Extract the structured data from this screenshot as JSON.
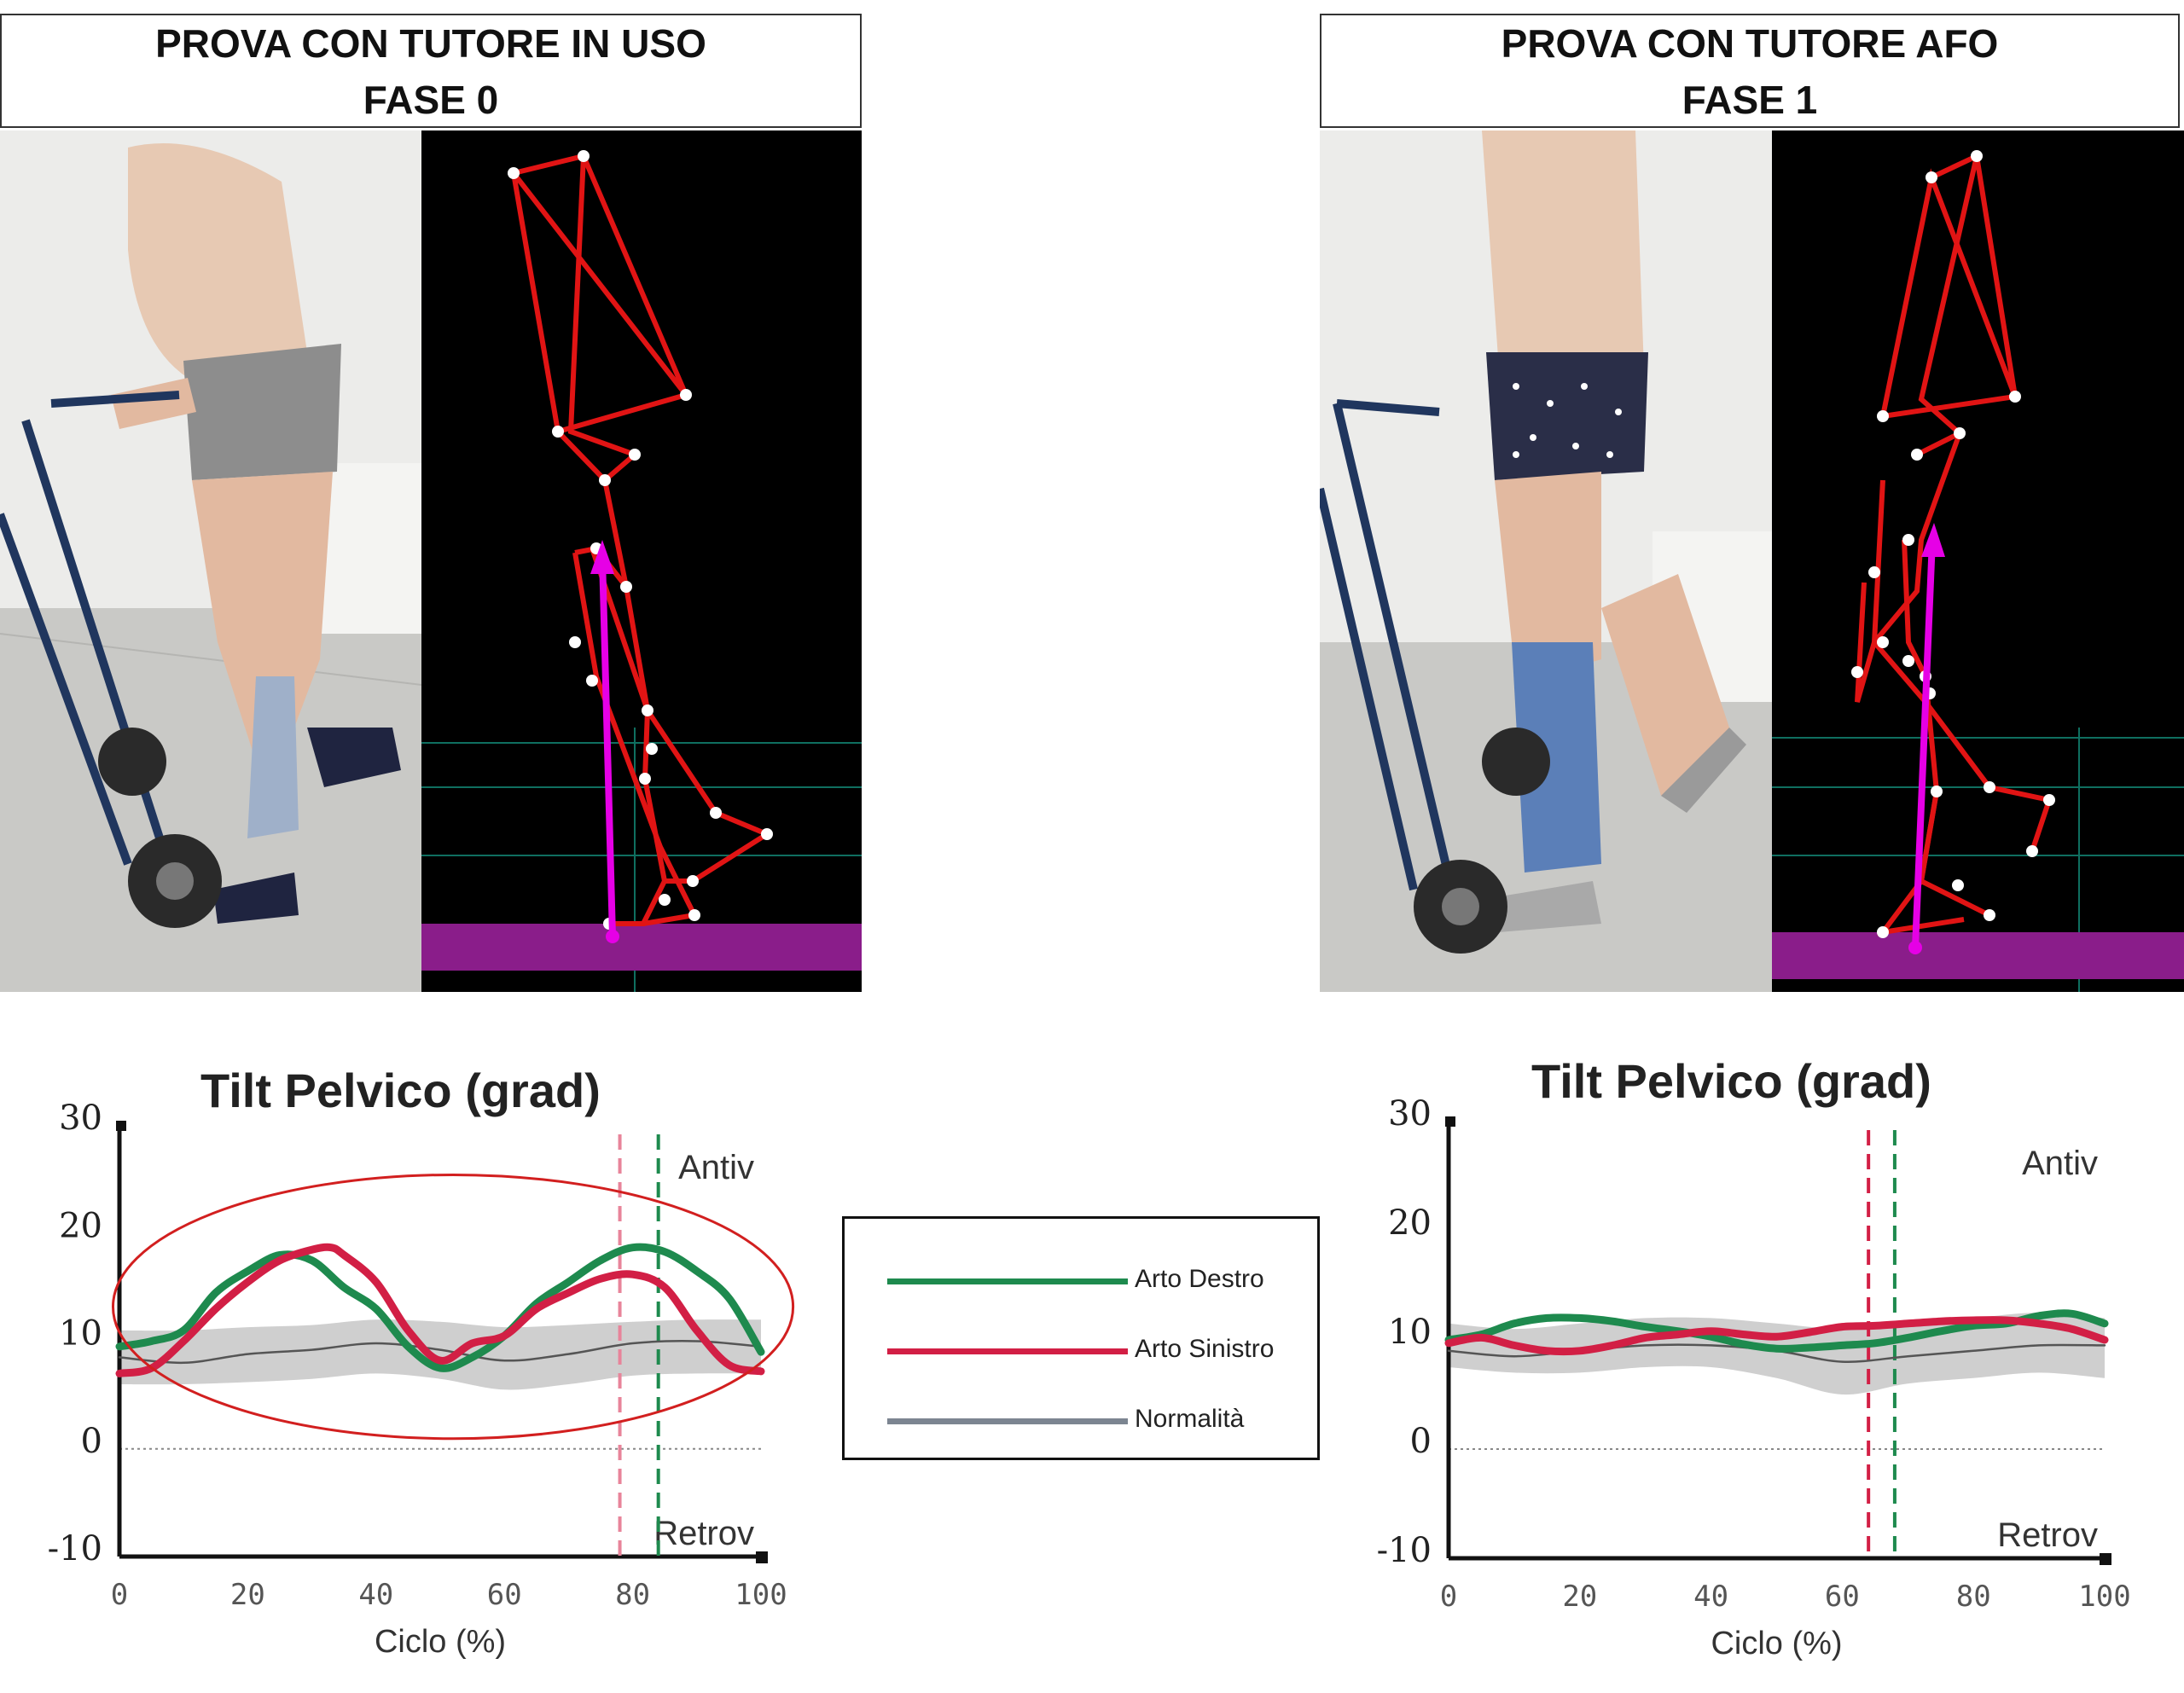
{
  "panels": [
    {
      "header": {
        "line1": "PROVA CON TUTORE IN USO",
        "line2": "FASE 0"
      }
    },
    {
      "header": {
        "line1": "PROVA CON TUTORE AFO",
        "line2": "FASE 1"
      }
    }
  ],
  "legend": [
    {
      "label": "Arto Destro",
      "color": "#1e8a4e"
    },
    {
      "label": "Arto Sinistro",
      "color": "#d21f45"
    },
    {
      "label": "Normalità",
      "color": "#7c8591"
    }
  ],
  "chart_data": [
    {
      "type": "line",
      "title": "Tilt Pelvico (grad)",
      "xlabel": "Ciclo (%)",
      "xlim": [
        0,
        100
      ],
      "ylim": [
        -10,
        30
      ],
      "xticks": [
        "0",
        "20",
        "40",
        "60",
        "80",
        "100"
      ],
      "yticks": [
        "30",
        "20",
        "10",
        "0",
        "-10"
      ],
      "top_annotation": "Antiv",
      "bottom_annotation": "Retrov",
      "highlight": "ellipse",
      "series": [
        {
          "name": "Arto Destro",
          "x": [
            0,
            5,
            10,
            15,
            20,
            25,
            30,
            35,
            40,
            45,
            50,
            55,
            60,
            65,
            70,
            75,
            80,
            85,
            90,
            95,
            100
          ],
          "values": [
            9.5,
            10,
            11,
            14.5,
            16.5,
            18,
            17.5,
            15,
            13,
            9.5,
            7.5,
            8.5,
            10.5,
            13.5,
            15.5,
            17.5,
            18.7,
            18.3,
            16.5,
            14,
            9
          ]
        },
        {
          "name": "Arto Sinistro",
          "x": [
            0,
            5,
            10,
            15,
            20,
            25,
            30,
            33,
            35,
            40,
            45,
            50,
            55,
            60,
            65,
            70,
            75,
            80,
            85,
            90,
            95,
            100
          ],
          "values": [
            7,
            7.5,
            10,
            13,
            15.5,
            17.5,
            18.5,
            18.7,
            18,
            15.5,
            11,
            8.2,
            9.8,
            10.5,
            13,
            14.5,
            15.8,
            16.2,
            15,
            11,
            7.8,
            7.2
          ]
        },
        {
          "name": "Normalità",
          "x": [
            0,
            10,
            20,
            30,
            40,
            50,
            60,
            70,
            80,
            90,
            100
          ],
          "values": [
            8.5,
            8,
            8.8,
            9.2,
            9.8,
            9.2,
            8.2,
            8.8,
            9.8,
            10,
            9.5
          ]
        }
      ],
      "normal_band": {
        "x": [
          0,
          10,
          20,
          30,
          40,
          50,
          60,
          70,
          80,
          90,
          100
        ],
        "upper": [
          11,
          11,
          11.3,
          11.5,
          12,
          11.8,
          11.3,
          11.5,
          11.8,
          12,
          12
        ],
        "lower": [
          6,
          6,
          6.2,
          6.5,
          7,
          6.5,
          5.5,
          6,
          6.8,
          7,
          7
        ]
      },
      "events": [
        {
          "x": 78,
          "color": "#e8849a"
        },
        {
          "x": 84,
          "color": "#1e8a4e"
        }
      ],
      "reference_line": 0
    },
    {
      "type": "line",
      "title": "Tilt Pelvico (grad)",
      "xlabel": "Ciclo (%)",
      "xlim": [
        0,
        100
      ],
      "ylim": [
        -10,
        30
      ],
      "xticks": [
        "0",
        "20",
        "40",
        "60",
        "80",
        "100"
      ],
      "yticks": [
        "30",
        "20",
        "10",
        "0",
        "-10"
      ],
      "top_annotation": "Antiv",
      "bottom_annotation": "Retrov",
      "series": [
        {
          "name": "Arto Destro",
          "x": [
            0,
            5,
            10,
            15,
            20,
            25,
            30,
            35,
            40,
            45,
            50,
            55,
            60,
            65,
            70,
            75,
            80,
            85,
            90,
            95,
            100
          ],
          "values": [
            10,
            10.5,
            11.5,
            12,
            12,
            11.7,
            11.2,
            10.8,
            10.3,
            9.6,
            9.2,
            9.3,
            9.5,
            9.7,
            10.2,
            10.8,
            11.3,
            11.5,
            12.2,
            12.4,
            11.5
          ]
        },
        {
          "name": "Arto Sinistro",
          "x": [
            0,
            5,
            10,
            15,
            20,
            25,
            30,
            35,
            40,
            45,
            50,
            55,
            60,
            65,
            70,
            75,
            80,
            85,
            90,
            95,
            100
          ],
          "values": [
            9.7,
            10.2,
            9.5,
            9,
            9,
            9.5,
            10.2,
            10.5,
            10.8,
            10.5,
            10.3,
            10.7,
            11.2,
            11.3,
            11.5,
            11.7,
            11.8,
            11.8,
            11.5,
            11,
            10
          ]
        },
        {
          "name": "Normalità",
          "x": [
            0,
            10,
            20,
            30,
            40,
            50,
            60,
            70,
            80,
            90,
            100
          ],
          "values": [
            9,
            8.5,
            9,
            9.5,
            9.5,
            9,
            8,
            8.5,
            9,
            9.5,
            9.5
          ]
        }
      ],
      "normal_band": {
        "x": [
          0,
          10,
          20,
          30,
          40,
          50,
          60,
          70,
          80,
          90,
          100
        ],
        "upper": [
          11.5,
          11,
          11.5,
          12,
          12,
          11.5,
          11,
          11.5,
          12,
          12.5,
          12
        ],
        "lower": [
          7.5,
          7,
          7,
          7.5,
          7.5,
          6.5,
          5,
          6,
          6.5,
          7,
          6.5
        ]
      },
      "events": [
        {
          "x": 64,
          "color": "#d21f45"
        },
        {
          "x": 68,
          "color": "#1e8a4e"
        }
      ],
      "reference_line": 0
    }
  ]
}
